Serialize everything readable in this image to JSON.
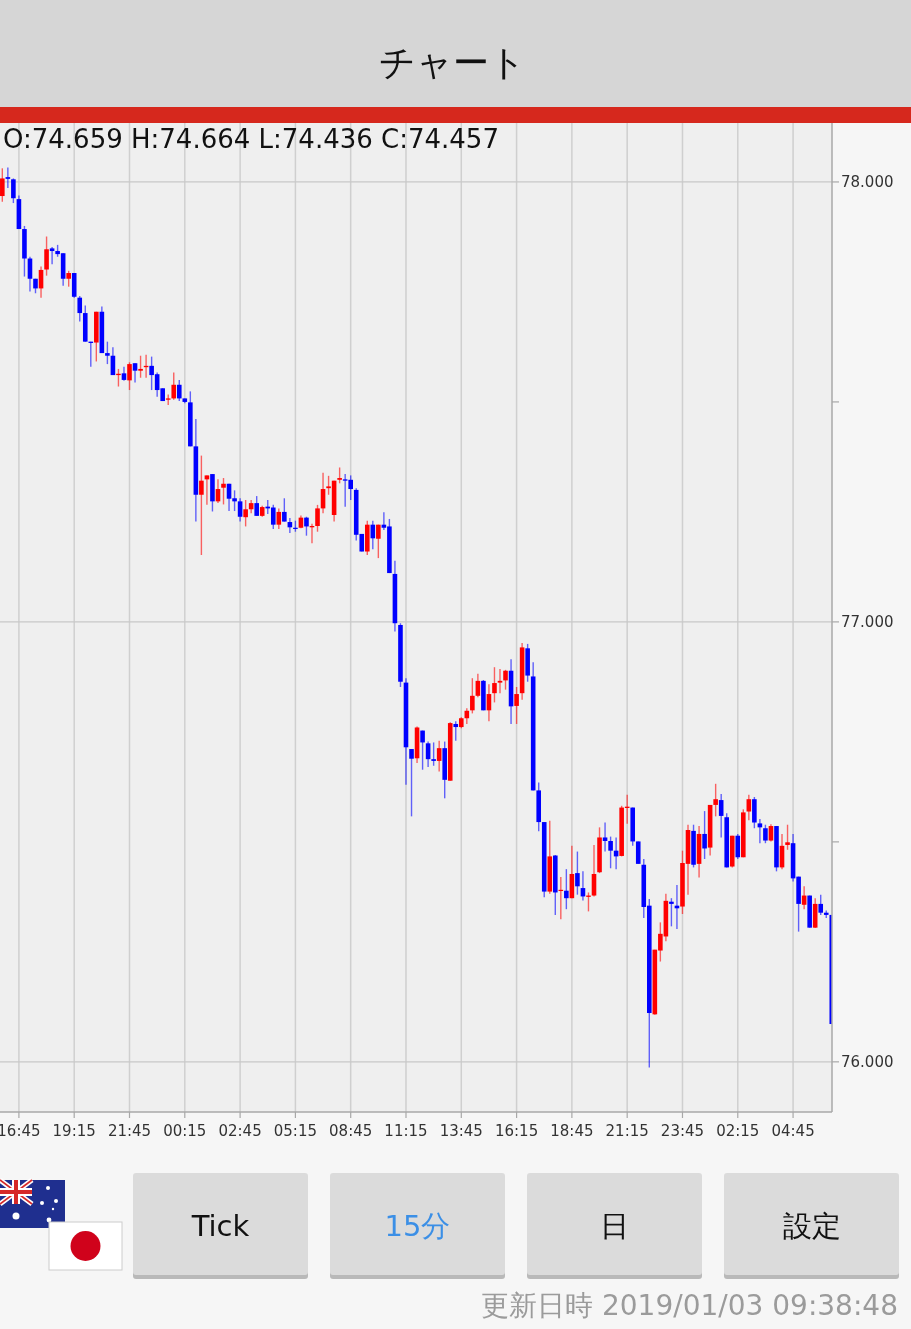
{
  "chart_data": {
    "type": "candlestick",
    "title": "チャート",
    "categories": [
      null,
      null,
      null,
      "16:45",
      null,
      null,
      null,
      null,
      null,
      null,
      null,
      null,
      null,
      "19:15",
      null,
      null,
      null,
      null,
      null,
      null,
      null,
      null,
      null,
      "21:45",
      null,
      null,
      null,
      null,
      null,
      null,
      null,
      null,
      null,
      "00:15",
      null,
      null,
      null,
      null,
      null,
      null,
      null,
      null,
      null,
      "02:45",
      null,
      null,
      null,
      null,
      null,
      null,
      null,
      null,
      null,
      "05:15",
      null,
      null,
      null,
      null,
      null,
      null,
      null,
      null,
      null,
      "08:45",
      null,
      null,
      null,
      null,
      null,
      null,
      null,
      null,
      null,
      "11:15",
      null,
      null,
      null,
      null,
      null,
      null,
      null,
      null,
      null,
      "13:45",
      null,
      null,
      null,
      null,
      null,
      null,
      null,
      null,
      null,
      "16:15",
      null,
      null,
      null,
      null,
      null,
      null,
      null,
      null,
      null,
      "18:45",
      null,
      null,
      null,
      null,
      null,
      null,
      null,
      null,
      null,
      "21:15",
      null,
      null,
      null,
      null,
      null,
      null,
      null,
      null,
      null,
      "23:45",
      null,
      null,
      null,
      null,
      null,
      null,
      null,
      null,
      null,
      "02:15",
      null,
      null,
      null,
      null,
      null,
      null,
      null,
      null,
      null,
      "04:45",
      null,
      null,
      null,
      null,
      null,
      null,
      null
    ],
    "ohlc": [
      [
        77.968,
        78.031,
        77.955,
        78.008
      ],
      [
        78.011,
        78.033,
        77.986,
        78.007
      ],
      [
        78.006,
        78.008,
        77.952,
        77.963
      ],
      [
        77.961,
        77.969,
        77.893,
        77.893
      ],
      [
        77.893,
        77.9,
        77.785,
        77.826
      ],
      [
        77.826,
        77.83,
        77.751,
        77.78
      ],
      [
        77.78,
        77.78,
        77.747,
        77.758
      ],
      [
        77.758,
        77.808,
        77.737,
        77.8
      ],
      [
        77.801,
        77.876,
        77.787,
        77.847
      ],
      [
        77.849,
        77.852,
        77.813,
        77.843
      ],
      [
        77.843,
        77.857,
        77.83,
        77.836
      ],
      [
        77.838,
        77.838,
        77.764,
        77.78
      ],
      [
        77.78,
        77.798,
        77.762,
        77.793
      ],
      [
        77.793,
        77.793,
        77.737,
        77.739
      ],
      [
        77.737,
        77.741,
        77.683,
        77.702
      ],
      [
        77.702,
        77.719,
        77.637,
        77.637
      ],
      [
        77.637,
        77.637,
        77.58,
        77.634
      ],
      [
        77.635,
        77.705,
        77.592,
        77.705
      ],
      [
        77.705,
        77.717,
        77.611,
        77.611
      ],
      [
        77.611,
        77.637,
        77.586,
        77.605
      ],
      [
        77.605,
        77.624,
        77.561,
        77.561
      ],
      [
        77.561,
        77.575,
        77.535,
        77.564
      ],
      [
        77.565,
        77.58,
        77.548,
        77.55
      ],
      [
        77.549,
        77.59,
        77.527,
        77.586
      ],
      [
        77.588,
        77.588,
        77.544,
        77.571
      ],
      [
        77.571,
        77.605,
        77.555,
        77.575
      ],
      [
        77.579,
        77.607,
        77.555,
        77.582
      ],
      [
        77.582,
        77.603,
        77.527,
        77.561
      ],
      [
        77.563,
        77.567,
        77.512,
        77.527
      ],
      [
        77.531,
        77.531,
        77.502,
        77.502
      ],
      [
        77.505,
        77.517,
        77.493,
        77.508
      ],
      [
        77.508,
        77.567,
        77.505,
        77.539
      ],
      [
        77.539,
        77.55,
        77.502,
        77.508
      ],
      [
        77.508,
        77.508,
        77.497,
        77.5
      ],
      [
        77.499,
        77.524,
        77.399,
        77.399
      ],
      [
        77.399,
        77.461,
        77.228,
        77.289
      ],
      [
        77.289,
        77.378,
        77.152,
        77.321
      ],
      [
        77.324,
        77.333,
        77.266,
        77.333
      ],
      [
        77.336,
        77.336,
        77.251,
        77.274
      ],
      [
        77.274,
        77.324,
        77.27,
        77.302
      ],
      [
        77.305,
        77.327,
        77.267,
        77.314
      ],
      [
        77.314,
        77.314,
        77.252,
        77.28
      ],
      [
        77.281,
        77.299,
        77.252,
        77.274
      ],
      [
        77.274,
        77.281,
        77.228,
        77.239
      ],
      [
        77.238,
        77.277,
        77.217,
        77.256
      ],
      [
        77.256,
        77.277,
        77.247,
        77.27
      ],
      [
        77.27,
        77.286,
        77.241,
        77.241
      ],
      [
        77.241,
        77.264,
        77.239,
        77.261
      ],
      [
        77.262,
        77.277,
        77.245,
        77.258
      ],
      [
        77.26,
        77.266,
        77.211,
        77.221
      ],
      [
        77.221,
        77.258,
        77.211,
        77.25
      ],
      [
        77.25,
        77.281,
        77.228,
        77.228
      ],
      [
        77.227,
        77.236,
        77.202,
        77.215
      ],
      [
        77.214,
        77.23,
        77.205,
        77.212
      ],
      [
        77.214,
        77.242,
        77.213,
        77.237
      ],
      [
        77.237,
        77.239,
        77.196,
        77.217
      ],
      [
        77.215,
        77.223,
        77.179,
        77.218
      ],
      [
        77.218,
        77.266,
        77.205,
        77.258
      ],
      [
        77.258,
        77.339,
        77.247,
        77.302
      ],
      [
        77.304,
        77.332,
        77.289,
        77.308
      ],
      [
        77.243,
        77.321,
        77.228,
        77.321
      ],
      [
        77.323,
        77.351,
        77.315,
        77.327
      ],
      [
        77.324,
        77.336,
        77.262,
        77.321
      ],
      [
        77.323,
        77.333,
        77.277,
        77.302
      ],
      [
        77.3,
        77.304,
        77.185,
        77.198
      ],
      [
        77.2,
        77.2,
        77.16,
        77.16
      ],
      [
        77.16,
        77.23,
        77.152,
        77.221
      ],
      [
        77.221,
        77.23,
        77.165,
        77.19
      ],
      [
        77.189,
        77.221,
        77.145,
        77.221
      ],
      [
        77.221,
        77.249,
        77.209,
        77.214
      ],
      [
        77.217,
        77.234,
        77.111,
        77.111
      ],
      [
        77.109,
        77.139,
        76.978,
        76.997
      ],
      [
        76.993,
        76.997,
        76.852,
        76.864
      ],
      [
        76.862,
        76.872,
        76.63,
        76.715
      ],
      [
        76.711,
        76.711,
        76.558,
        76.689
      ],
      [
        76.69,
        76.762,
        76.679,
        76.76
      ],
      [
        76.753,
        76.753,
        76.664,
        76.726
      ],
      [
        76.724,
        76.728,
        76.67,
        76.688
      ],
      [
        76.688,
        76.726,
        76.673,
        76.684
      ],
      [
        76.684,
        76.73,
        76.66,
        76.713
      ],
      [
        76.713,
        76.728,
        76.599,
        76.641
      ],
      [
        76.639,
        76.772,
        76.639,
        76.77
      ],
      [
        76.768,
        76.774,
        76.73,
        76.761
      ],
      [
        76.761,
        76.783,
        76.758,
        76.781
      ],
      [
        76.781,
        76.804,
        76.768,
        76.798
      ],
      [
        76.799,
        76.872,
        76.792,
        76.832
      ],
      [
        76.832,
        76.882,
        76.829,
        76.866
      ],
      [
        76.866,
        76.868,
        76.799,
        76.799
      ],
      [
        76.799,
        76.858,
        76.774,
        76.836
      ],
      [
        76.838,
        76.897,
        76.817,
        76.861
      ],
      [
        76.862,
        76.893,
        76.838,
        76.866
      ],
      [
        76.867,
        76.891,
        76.846,
        76.889
      ],
      [
        76.889,
        76.915,
        76.768,
        76.808
      ],
      [
        76.809,
        76.852,
        76.768,
        76.836
      ],
      [
        76.838,
        76.952,
        76.823,
        76.942
      ],
      [
        76.94,
        76.95,
        76.864,
        76.878
      ],
      [
        76.876,
        76.908,
        76.617,
        76.617
      ],
      [
        76.617,
        76.635,
        76.524,
        76.545
      ],
      [
        76.545,
        76.545,
        76.374,
        76.387
      ],
      [
        76.387,
        76.548,
        76.382,
        76.467
      ],
      [
        76.469,
        76.47,
        76.334,
        76.385
      ],
      [
        76.389,
        76.42,
        76.324,
        76.391
      ],
      [
        76.389,
        76.438,
        76.347,
        76.372
      ],
      [
        76.372,
        76.491,
        76.372,
        76.427
      ],
      [
        76.429,
        76.478,
        76.38,
        76.399
      ],
      [
        76.395,
        76.433,
        76.367,
        76.376
      ],
      [
        76.375,
        76.385,
        76.342,
        76.378
      ],
      [
        76.378,
        76.493,
        76.376,
        76.427
      ],
      [
        76.431,
        76.533,
        76.429,
        76.51
      ],
      [
        76.51,
        76.544,
        76.478,
        76.502
      ],
      [
        76.502,
        76.512,
        76.44,
        76.48
      ],
      [
        76.48,
        76.51,
        76.438,
        76.467
      ],
      [
        76.468,
        76.582,
        76.467,
        76.578
      ],
      [
        76.577,
        76.607,
        76.541,
        76.58
      ],
      [
        76.578,
        76.578,
        76.491,
        76.501
      ],
      [
        76.501,
        76.501,
        76.45,
        76.45
      ],
      [
        76.448,
        76.461,
        76.327,
        76.352
      ],
      [
        76.355,
        76.37,
        75.987,
        76.111
      ],
      [
        76.108,
        76.255,
        76.107,
        76.255
      ],
      [
        76.253,
        76.317,
        76.228,
        76.291
      ],
      [
        76.285,
        76.382,
        76.274,
        76.366
      ],
      [
        76.364,
        76.372,
        76.308,
        76.359
      ],
      [
        76.355,
        76.402,
        76.302,
        76.349
      ],
      [
        76.353,
        76.48,
        76.336,
        76.452
      ],
      [
        76.45,
        76.539,
        76.38,
        76.527
      ],
      [
        76.525,
        76.539,
        76.442,
        76.448
      ],
      [
        76.45,
        76.536,
        76.419,
        76.518
      ],
      [
        76.518,
        76.57,
        76.461,
        76.485
      ],
      [
        76.487,
        76.584,
        76.469,
        76.584
      ],
      [
        76.584,
        76.632,
        76.558,
        76.597
      ],
      [
        76.595,
        76.609,
        76.51,
        76.559
      ],
      [
        76.556,
        76.565,
        76.442,
        76.442
      ],
      [
        76.444,
        76.514,
        76.442,
        76.514
      ],
      [
        76.514,
        76.518,
        76.461,
        76.465
      ],
      [
        76.465,
        76.574,
        76.465,
        76.567
      ],
      [
        76.569,
        76.607,
        76.549,
        76.597
      ],
      [
        76.597,
        76.602,
        76.531,
        76.544
      ],
      [
        76.542,
        76.552,
        76.497,
        76.533
      ],
      [
        76.531,
        76.539,
        76.497,
        76.503
      ],
      [
        76.503,
        76.54,
        76.501,
        76.536
      ],
      [
        76.536,
        76.536,
        76.433,
        76.442
      ],
      [
        76.442,
        76.518,
        76.438,
        76.491
      ],
      [
        76.493,
        76.539,
        76.482,
        76.499
      ],
      [
        76.497,
        76.518,
        76.41,
        76.417
      ],
      [
        76.421,
        76.421,
        76.296,
        76.359
      ],
      [
        76.357,
        76.399,
        76.347,
        76.378
      ],
      [
        76.378,
        76.378,
        76.305,
        76.305
      ],
      [
        76.305,
        76.372,
        76.304,
        76.359
      ],
      [
        76.359,
        76.38,
        76.334,
        76.339
      ],
      [
        76.339,
        76.344,
        76.327,
        76.334
      ],
      [
        76.334,
        76.334,
        76.086,
        76.086
      ]
    ],
    "colors": [
      "#ff0000",
      "#0000ff",
      "#0000ff",
      "#0000ff",
      "#0000ff",
      "#0000ff",
      "#0000ff",
      "#ff0000",
      "#ff0000",
      "#0000ff",
      "#0000ff",
      "#0000ff",
      "#ff0000",
      "#0000ff",
      "#0000ff",
      "#0000ff",
      "#0000ff",
      "#ff0000",
      "#0000ff",
      "#0000ff",
      "#0000ff",
      "#ff0000",
      "#0000ff",
      "#ff0000",
      "#0000ff",
      "#ff0000",
      "#ff0000",
      "#0000ff",
      "#0000ff",
      "#0000ff",
      "#ff0000",
      "#ff0000",
      "#0000ff",
      "#0000ff",
      "#0000ff",
      "#0000ff",
      "#ff0000",
      "#ff0000",
      "#0000ff",
      "#ff0000",
      "#ff0000",
      "#0000ff",
      "#0000ff",
      "#0000ff",
      "#ff0000",
      "#ff0000",
      "#0000ff",
      "#ff0000",
      "#0000ff",
      "#0000ff",
      "#ff0000",
      "#0000ff",
      "#0000ff",
      "#0000ff",
      "#ff0000",
      "#0000ff",
      "#ff0000",
      "#ff0000",
      "#ff0000",
      "#ff0000",
      "#ff0000",
      "#ff0000",
      "#0000ff",
      "#0000ff",
      "#0000ff",
      "#0000ff",
      "#ff0000",
      "#0000ff",
      "#ff0000",
      "#0000ff",
      "#0000ff",
      "#0000ff",
      "#0000ff",
      "#0000ff",
      "#0000ff",
      "#ff0000",
      "#0000ff",
      "#0000ff",
      "#0000ff",
      "#ff0000",
      "#0000ff",
      "#ff0000",
      "#0000ff",
      "#ff0000",
      "#ff0000",
      "#ff0000",
      "#ff0000",
      "#0000ff",
      "#ff0000",
      "#ff0000",
      "#ff0000",
      "#ff0000",
      "#0000ff",
      "#ff0000",
      "#ff0000",
      "#0000ff",
      "#0000ff",
      "#0000ff",
      "#0000ff",
      "#ff0000",
      "#0000ff",
      "#ff0000",
      "#0000ff",
      "#ff0000",
      "#0000ff",
      "#0000ff",
      "#ff0000",
      "#ff0000",
      "#ff0000",
      "#0000ff",
      "#0000ff",
      "#0000ff",
      "#ff0000",
      "#ff0000",
      "#0000ff",
      "#0000ff",
      "#0000ff",
      "#0000ff",
      "#ff0000",
      "#ff0000",
      "#ff0000",
      "#0000ff",
      "#0000ff",
      "#ff0000",
      "#ff0000",
      "#0000ff",
      "#ff0000",
      "#0000ff",
      "#ff0000",
      "#ff0000",
      "#0000ff",
      "#0000ff",
      "#ff0000",
      "#0000ff",
      "#ff0000",
      "#ff0000",
      "#0000ff",
      "#0000ff",
      "#0000ff",
      "#ff0000",
      "#0000ff",
      "#ff0000",
      "#ff0000",
      "#0000ff",
      "#0000ff",
      "#ff0000",
      "#0000ff",
      "#ff0000",
      "#0000ff",
      "#0000ff",
      "#0000ff"
    ],
    "ylim": [
      75.886,
      78.134
    ],
    "yticks": [
      {
        "value": 76,
        "label": "76.000"
      },
      {
        "value": 76.5,
        "label": null
      },
      {
        "value": 77,
        "label": "77.000"
      },
      {
        "value": 77.5,
        "label": null
      },
      {
        "value": 78,
        "label": "78.000"
      }
    ],
    "grid": true,
    "annotations": [
      "O:74.659 H:74.664 L:74.436 C:74.457",
      "Tick",
      "15分",
      "日",
      "設定",
      "更新日時 2019/01/03 09:38:48"
    ]
  }
}
